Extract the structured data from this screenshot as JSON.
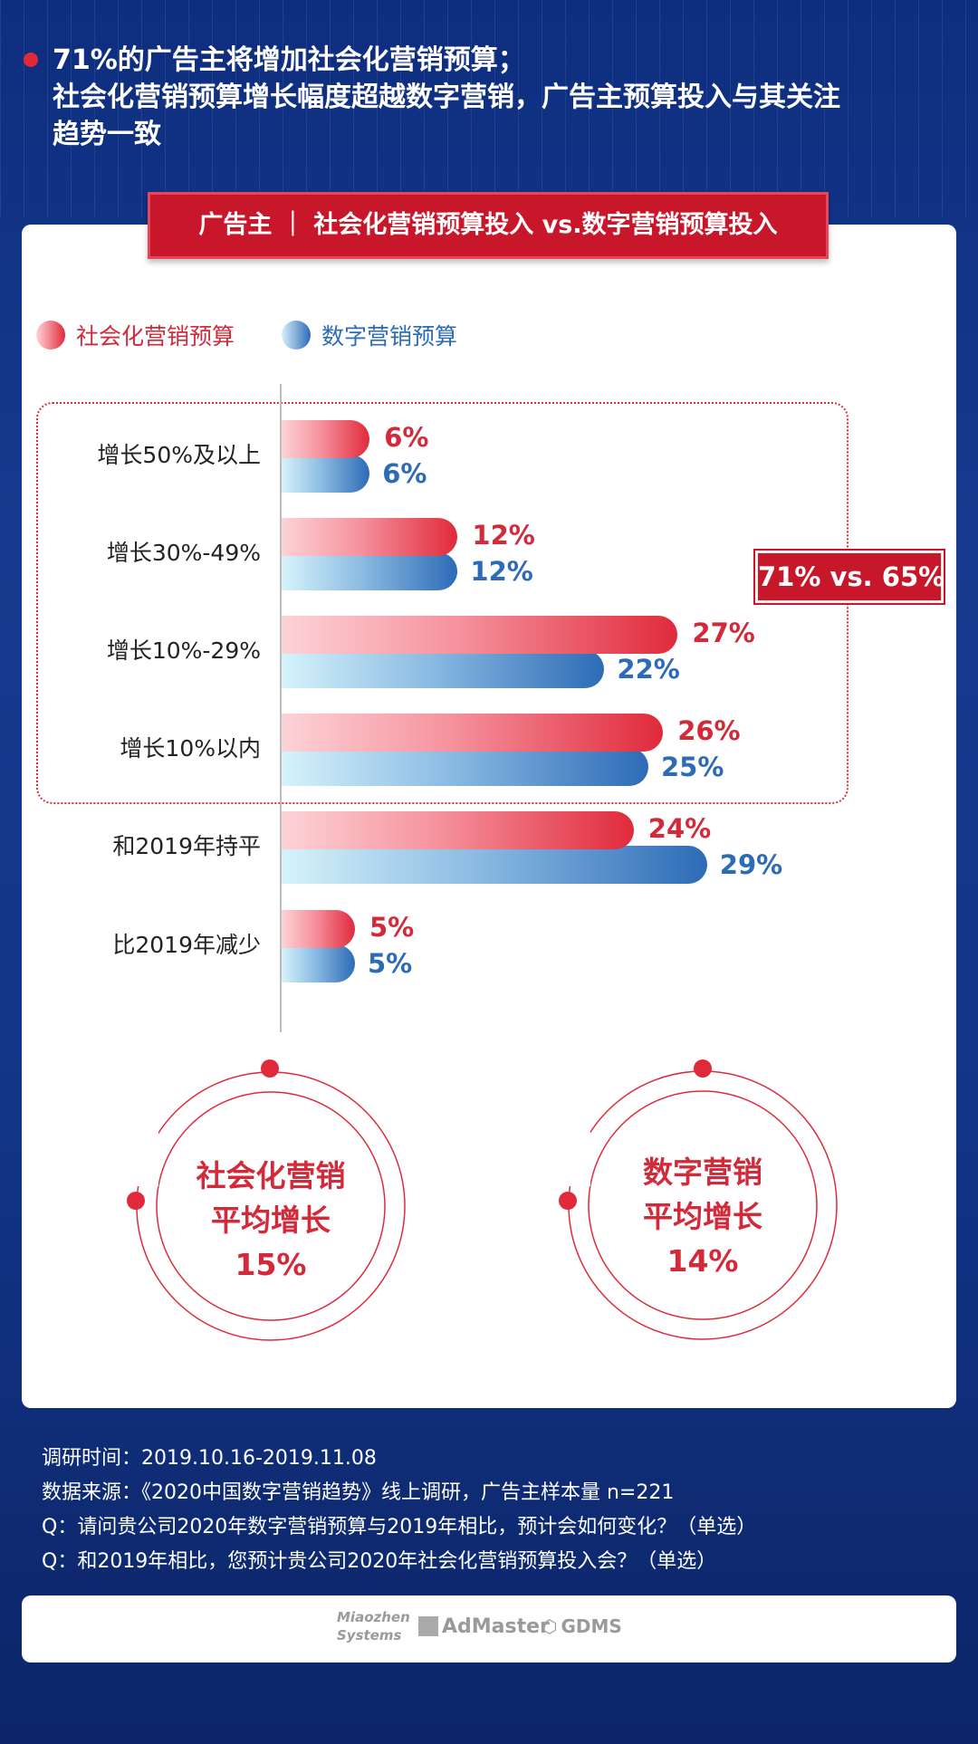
{
  "header": {
    "line1": "71%的广告主将增加社会化营销预算；",
    "line2": "社会化营销预算增长幅度超越数字营销，广告主预算投入与其关注",
    "line3": "趋势一致"
  },
  "banner": "广告主 ｜ 社会化营销预算投入 vs.数字营销预算投入",
  "comparison_badge": "71% vs. 65%",
  "chart_data": {
    "type": "bar",
    "orientation": "horizontal",
    "categories": [
      "增长50%及以上",
      "增长30%-49%",
      "增长10%-29%",
      "增长10%以内",
      "和2019年持平",
      "比2019年减少"
    ],
    "series": [
      {
        "name": "社会化营销预算",
        "values": [
          6,
          12,
          27,
          26,
          24,
          5
        ],
        "labels": [
          "6%",
          "12%",
          "27%",
          "26%",
          "24%",
          "5%"
        ],
        "color": "#e02a3c"
      },
      {
        "name": "数字营销预算",
        "values": [
          6,
          12,
          22,
          25,
          29,
          5
        ],
        "labels": [
          "6%",
          "12%",
          "22%",
          "25%",
          "29%",
          "5%"
        ],
        "color": "#2d6bb6"
      }
    ],
    "unit": "%",
    "legend": "top-left",
    "grid": false
  },
  "circles": [
    {
      "line1": "社会化营销",
      "line2": "平均增长",
      "value": "15%"
    },
    {
      "line1": "数字营销",
      "line2": "平均增长",
      "value": "14%"
    }
  ],
  "notes": [
    "调研时间：2019.10.16-2019.11.08",
    "数据来源：《2020中国数字营销趋势》线上调研，广告主样本量 n=221",
    "Q：请问贵公司2020年数字营销预算与2019年相比，预计会如何变化？（单选）",
    "Q：和2019年相比，您预计贵公司2020年社会化营销预算投入会？（单选）"
  ],
  "logos": [
    "Miaozhen Systems",
    "AdMaster",
    "GDMS"
  ],
  "colors": {
    "accent_red": "#d32a3a",
    "accent_blue": "#2d6bb6",
    "background": "#14307a"
  }
}
